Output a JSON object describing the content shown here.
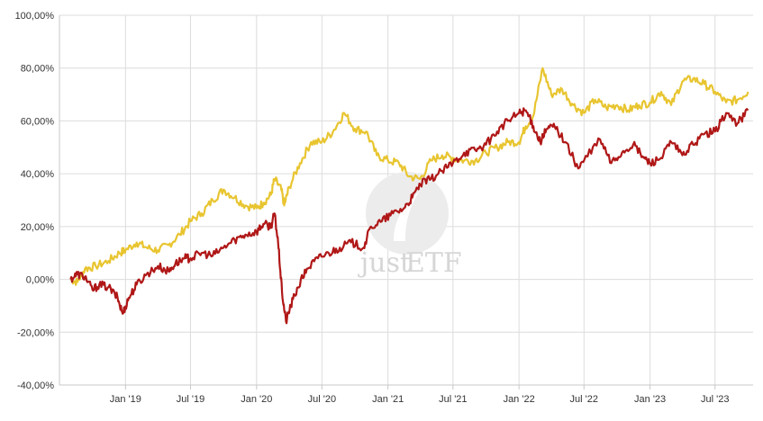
{
  "chart_data": {
    "type": "line",
    "title": "",
    "xlabel": "",
    "ylabel": "",
    "y_tick_labels": [
      "100,00%",
      "80,00%",
      "60,00%",
      "40,00%",
      "20,00%",
      "0,00%",
      "-20,00%",
      "-40,00%"
    ],
    "y_ticks": [
      100,
      80,
      60,
      40,
      20,
      0,
      -20,
      -40
    ],
    "ylim": [
      -40,
      100
    ],
    "x_tick_labels": [
      "Jan '19",
      "Jul '19",
      "Jan '20",
      "Jul '20",
      "Jan '21",
      "Jul '21",
      "Jan '22",
      "Jul '22",
      "Jan '23",
      "Jul '23"
    ],
    "x_ticks": [
      "2019-01-01",
      "2019-07-01",
      "2020-01-01",
      "2020-07-01",
      "2021-01-01",
      "2021-07-01",
      "2022-01-01",
      "2022-07-01",
      "2023-01-01",
      "2023-07-01"
    ],
    "xlim": [
      "2018-07-01",
      "2023-10-15"
    ],
    "grid": true,
    "legend": "none",
    "series": [
      {
        "color": "#e8c530",
        "points": [
          [
            "2018-08-01",
            0
          ],
          [
            "2018-08-20",
            -1
          ],
          [
            "2018-09-10",
            4
          ],
          [
            "2018-10-10",
            5
          ],
          [
            "2018-11-15",
            7
          ],
          [
            "2018-12-15",
            10
          ],
          [
            "2019-01-01",
            11
          ],
          [
            "2019-02-01",
            14
          ],
          [
            "2019-03-01",
            12
          ],
          [
            "2019-04-01",
            11
          ],
          [
            "2019-05-01",
            13
          ],
          [
            "2019-06-01",
            17
          ],
          [
            "2019-07-01",
            22
          ],
          [
            "2019-08-01",
            25
          ],
          [
            "2019-09-01",
            30
          ],
          [
            "2019-10-01",
            34
          ],
          [
            "2019-11-01",
            31
          ],
          [
            "2019-12-01",
            28
          ],
          [
            "2020-01-01",
            27
          ],
          [
            "2020-01-20",
            29
          ],
          [
            "2020-02-10",
            32
          ],
          [
            "2020-02-20",
            38
          ],
          [
            "2020-03-10",
            34
          ],
          [
            "2020-03-18",
            28
          ],
          [
            "2020-04-01",
            35
          ],
          [
            "2020-05-01",
            44
          ],
          [
            "2020-06-01",
            52
          ],
          [
            "2020-07-01",
            52
          ],
          [
            "2020-08-01",
            56
          ],
          [
            "2020-09-01",
            63
          ],
          [
            "2020-10-01",
            57
          ],
          [
            "2020-11-01",
            56
          ],
          [
            "2020-12-01",
            47
          ],
          [
            "2021-01-01",
            45
          ],
          [
            "2021-02-01",
            44
          ],
          [
            "2021-03-01",
            39
          ],
          [
            "2021-04-01",
            38
          ],
          [
            "2021-05-01",
            45
          ],
          [
            "2021-06-01",
            47
          ],
          [
            "2021-07-01",
            46
          ],
          [
            "2021-08-01",
            45
          ],
          [
            "2021-09-01",
            45
          ],
          [
            "2021-10-01",
            48
          ],
          [
            "2021-11-01",
            50
          ],
          [
            "2021-12-01",
            52
          ],
          [
            "2022-01-01",
            52
          ],
          [
            "2022-01-20",
            58
          ],
          [
            "2022-02-10",
            62
          ],
          [
            "2022-03-08",
            80
          ],
          [
            "2022-04-01",
            70
          ],
          [
            "2022-05-01",
            72
          ],
          [
            "2022-06-01",
            66
          ],
          [
            "2022-07-01",
            63
          ],
          [
            "2022-08-01",
            68
          ],
          [
            "2022-09-01",
            65
          ],
          [
            "2022-10-01",
            66
          ],
          [
            "2022-11-01",
            64
          ],
          [
            "2022-12-01",
            66
          ],
          [
            "2023-01-01",
            67
          ],
          [
            "2023-02-01",
            71
          ],
          [
            "2023-03-01",
            66
          ],
          [
            "2023-04-01",
            75
          ],
          [
            "2023-05-01",
            76
          ],
          [
            "2023-06-01",
            74
          ],
          [
            "2023-07-01",
            71
          ],
          [
            "2023-08-01",
            67
          ],
          [
            "2023-09-01",
            68
          ],
          [
            "2023-10-01",
            71
          ]
        ]
      },
      {
        "color": "#b01717",
        "points": [
          [
            "2018-08-01",
            0
          ],
          [
            "2018-08-20",
            2
          ],
          [
            "2018-09-10",
            1
          ],
          [
            "2018-10-01",
            -4
          ],
          [
            "2018-10-20",
            -2
          ],
          [
            "2018-11-15",
            -3
          ],
          [
            "2018-12-10",
            -7
          ],
          [
            "2018-12-24",
            -13
          ],
          [
            "2019-01-10",
            -7
          ],
          [
            "2019-02-01",
            -2
          ],
          [
            "2019-03-01",
            2
          ],
          [
            "2019-04-01",
            5
          ],
          [
            "2019-05-01",
            3
          ],
          [
            "2019-05-20",
            6
          ],
          [
            "2019-06-15",
            8
          ],
          [
            "2019-07-01",
            8
          ],
          [
            "2019-08-01",
            10
          ],
          [
            "2019-09-01",
            9
          ],
          [
            "2019-10-01",
            12
          ],
          [
            "2019-11-01",
            15
          ],
          [
            "2019-12-01",
            17
          ],
          [
            "2020-01-01",
            18
          ],
          [
            "2020-01-20",
            21
          ],
          [
            "2020-02-10",
            20
          ],
          [
            "2020-02-20",
            25
          ],
          [
            "2020-03-01",
            14
          ],
          [
            "2020-03-12",
            -5
          ],
          [
            "2020-03-23",
            -16
          ],
          [
            "2020-04-05",
            -10
          ],
          [
            "2020-04-25",
            -3
          ],
          [
            "2020-05-20",
            4
          ],
          [
            "2020-06-20",
            8
          ],
          [
            "2020-07-20",
            10
          ],
          [
            "2020-08-20",
            12
          ],
          [
            "2020-09-20",
            14
          ],
          [
            "2020-10-25",
            12
          ],
          [
            "2020-11-15",
            20
          ],
          [
            "2020-12-15",
            22
          ],
          [
            "2021-01-15",
            25
          ],
          [
            "2021-02-15",
            27
          ],
          [
            "2021-03-10",
            31
          ],
          [
            "2021-04-01",
            36
          ],
          [
            "2021-05-01",
            38
          ],
          [
            "2021-06-01",
            41
          ],
          [
            "2021-07-01",
            44
          ],
          [
            "2021-08-01",
            48
          ],
          [
            "2021-09-01",
            49
          ],
          [
            "2021-10-01",
            51
          ],
          [
            "2021-11-01",
            56
          ],
          [
            "2021-12-01",
            60
          ],
          [
            "2022-01-01",
            63
          ],
          [
            "2022-01-20",
            64
          ],
          [
            "2022-02-10",
            58
          ],
          [
            "2022-03-01",
            52
          ],
          [
            "2022-03-20",
            57
          ],
          [
            "2022-04-10",
            58
          ],
          [
            "2022-05-10",
            52
          ],
          [
            "2022-06-15",
            42
          ],
          [
            "2022-07-01",
            45
          ],
          [
            "2022-08-15",
            53
          ],
          [
            "2022-09-15",
            44
          ],
          [
            "2022-10-15",
            48
          ],
          [
            "2022-11-15",
            51
          ],
          [
            "2022-12-15",
            46
          ],
          [
            "2023-01-01",
            44
          ],
          [
            "2023-02-01",
            46
          ],
          [
            "2023-03-01",
            52
          ],
          [
            "2023-04-01",
            47
          ],
          [
            "2023-05-01",
            51
          ],
          [
            "2023-06-01",
            55
          ],
          [
            "2023-07-01",
            56
          ],
          [
            "2023-08-01",
            63
          ],
          [
            "2023-09-01",
            59
          ],
          [
            "2023-10-01",
            64
          ]
        ]
      }
    ]
  },
  "watermark": {
    "text_left": "just",
    "text_right": "ETF"
  }
}
